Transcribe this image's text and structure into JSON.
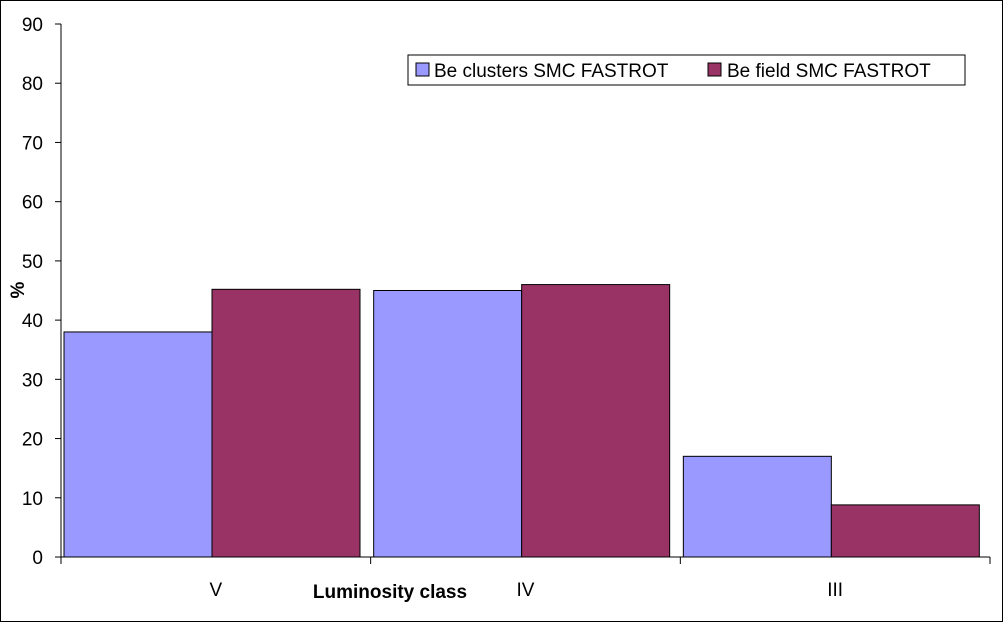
{
  "chart_data": {
    "type": "bar",
    "title": "",
    "xlabel": "Luminosity class",
    "ylabel": "%",
    "categories": [
      "V",
      "IV",
      "III"
    ],
    "series": [
      {
        "name": "Be clusters SMC FASTROT",
        "values": [
          38,
          45,
          17
        ],
        "color": "#9999ff"
      },
      {
        "name": "Be field SMC FASTROT",
        "values": [
          45.2,
          46,
          8.8
        ],
        "color": "#993366"
      }
    ],
    "ylim": [
      0,
      90
    ],
    "yticks": [
      0,
      10,
      20,
      30,
      40,
      50,
      60,
      70,
      80,
      90
    ],
    "grid": false,
    "legend_position": "top-right"
  }
}
